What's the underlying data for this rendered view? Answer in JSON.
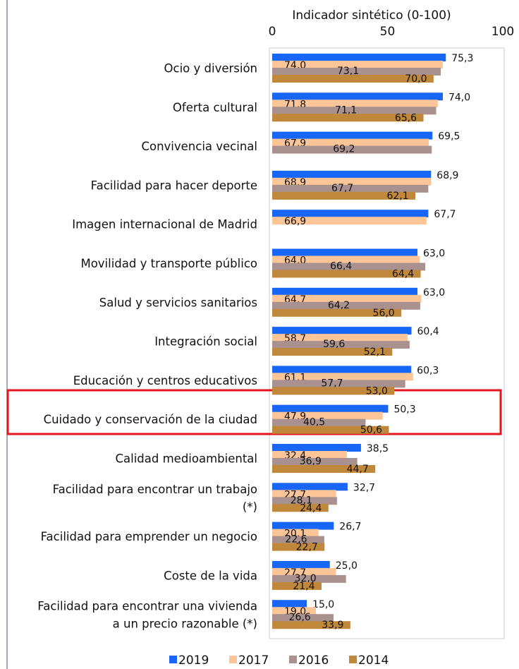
{
  "chart_data": {
    "type": "bar",
    "orientation": "horizontal",
    "title": "Indicador sintético (0-100)",
    "categories": [
      "Ocio y diversión",
      "Oferta cultural",
      "Convivencia vecinal",
      "Facilidad para hacer deporte",
      "Imagen internacional de Madrid",
      "Movilidad y transporte público",
      "Salud y servicios sanitarios",
      "Integración social",
      "Educación y centros educativos",
      "Cuidado y conservación de la ciudad",
      "Calidad medioambiental",
      "Facilidad para encontrar un trabajo\n(*)",
      "Facilidad para emprender un negocio",
      "Coste de la vida",
      "Facilidad para encontrar una vivienda\na un precio razonable (*)"
    ],
    "series": [
      {
        "name": "2019",
        "color": "#1766f5",
        "values": [
          75.3,
          74.0,
          69.5,
          68.9,
          67.7,
          63.0,
          63.0,
          60.4,
          60.3,
          50.3,
          38.5,
          32.7,
          26.7,
          25.0,
          15.0
        ],
        "value_labels": [
          "75,3",
          "74,0",
          "69,5",
          "68,9",
          "67,7",
          "63,0",
          "63,0",
          "60,4",
          "60,3",
          "50,3",
          "38,5",
          "32,7",
          "26,7",
          "25,0",
          "15,0"
        ]
      },
      {
        "name": "2017",
        "color": "#fbc597",
        "values": [
          74.0,
          71.8,
          67.9,
          68.9,
          66.9,
          64.0,
          64.7,
          58.7,
          61.1,
          47.9,
          32.4,
          27.7,
          20.1,
          27.7,
          19.0
        ],
        "value_labels": [
          "74,0",
          "71,8",
          "67,9",
          "68,9",
          "66,9",
          "64,0",
          "64,7",
          "58,7",
          "61,1",
          "47,9",
          "32,4",
          "27,7",
          "20,1",
          "27,7",
          "19,0"
        ]
      },
      {
        "name": "2016",
        "color": "#a8918e",
        "values": [
          73.1,
          71.1,
          69.2,
          67.7,
          null,
          66.4,
          64.2,
          59.6,
          57.7,
          40.5,
          36.9,
          28.1,
          22.6,
          32.0,
          26.6
        ],
        "value_labels": [
          "73,1",
          "71,1",
          "69,2",
          "67,7",
          null,
          "66,4",
          "64,2",
          "59,6",
          "57,7",
          "40,5",
          "36,9",
          "28,1",
          "22,6",
          "32,0",
          "26,6"
        ]
      },
      {
        "name": "2014",
        "color": "#c0883a",
        "values": [
          70.0,
          65.6,
          null,
          62.1,
          null,
          64.4,
          56.0,
          52.1,
          53.0,
          50.6,
          44.7,
          24.4,
          22.7,
          21.4,
          33.9
        ],
        "value_labels": [
          "70,0",
          "65,6",
          null,
          "62,1",
          null,
          "64,4",
          "56,0",
          "52,1",
          "53,0",
          "50,6",
          "44,7",
          "24,4",
          "22,7",
          "21,4",
          "33,9"
        ]
      }
    ],
    "xlim": [
      0,
      100
    ],
    "xticks": [
      0,
      50,
      100
    ],
    "grid": false,
    "legend": "bottom"
  }
}
